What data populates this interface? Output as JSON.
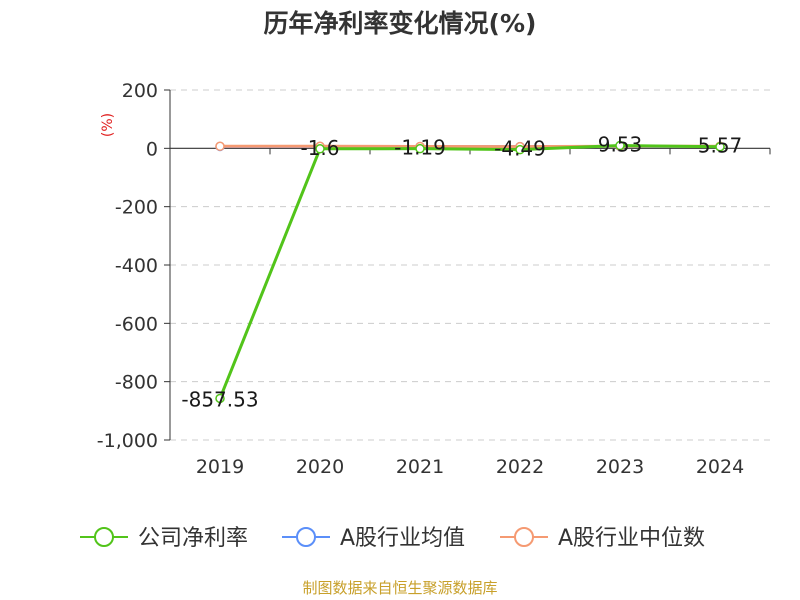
{
  "chart_data": {
    "type": "line",
    "title": "历年净利率变化情况(%)",
    "ylabel": "(%)",
    "categories": [
      "2019",
      "2020",
      "2021",
      "2022",
      "2023",
      "2024"
    ],
    "ylim": [
      -1000,
      200
    ],
    "yticks": [
      200,
      0,
      -200,
      -400,
      -600,
      -800,
      -1000
    ],
    "ytick_labels": [
      "200",
      "0",
      "-200",
      "-400",
      "-600",
      "-800",
      "-1,000"
    ],
    "grid": true,
    "legend_position": "bottom",
    "series": [
      {
        "name": "公司净利率",
        "color": "#52c41a",
        "values": [
          -857.53,
          -1.6,
          -1.19,
          -4.49,
          9.53,
          5.57
        ],
        "labels": [
          "-857.53",
          "-1.6",
          "-1.19",
          "-4.49",
          "9.53",
          "5.57"
        ]
      },
      {
        "name": "A股行业均值",
        "color": "#5b8ff9",
        "values": [
          6.5,
          6.5,
          6.0,
          5.8,
          6.5,
          6.5
        ]
      },
      {
        "name": "A股行业中位数",
        "color": "#f59a72",
        "values": [
          7.0,
          7.0,
          6.5,
          6.0,
          7.0,
          7.0
        ]
      }
    ]
  },
  "footer": {
    "source": "制图数据来自恒生聚源数据库"
  }
}
